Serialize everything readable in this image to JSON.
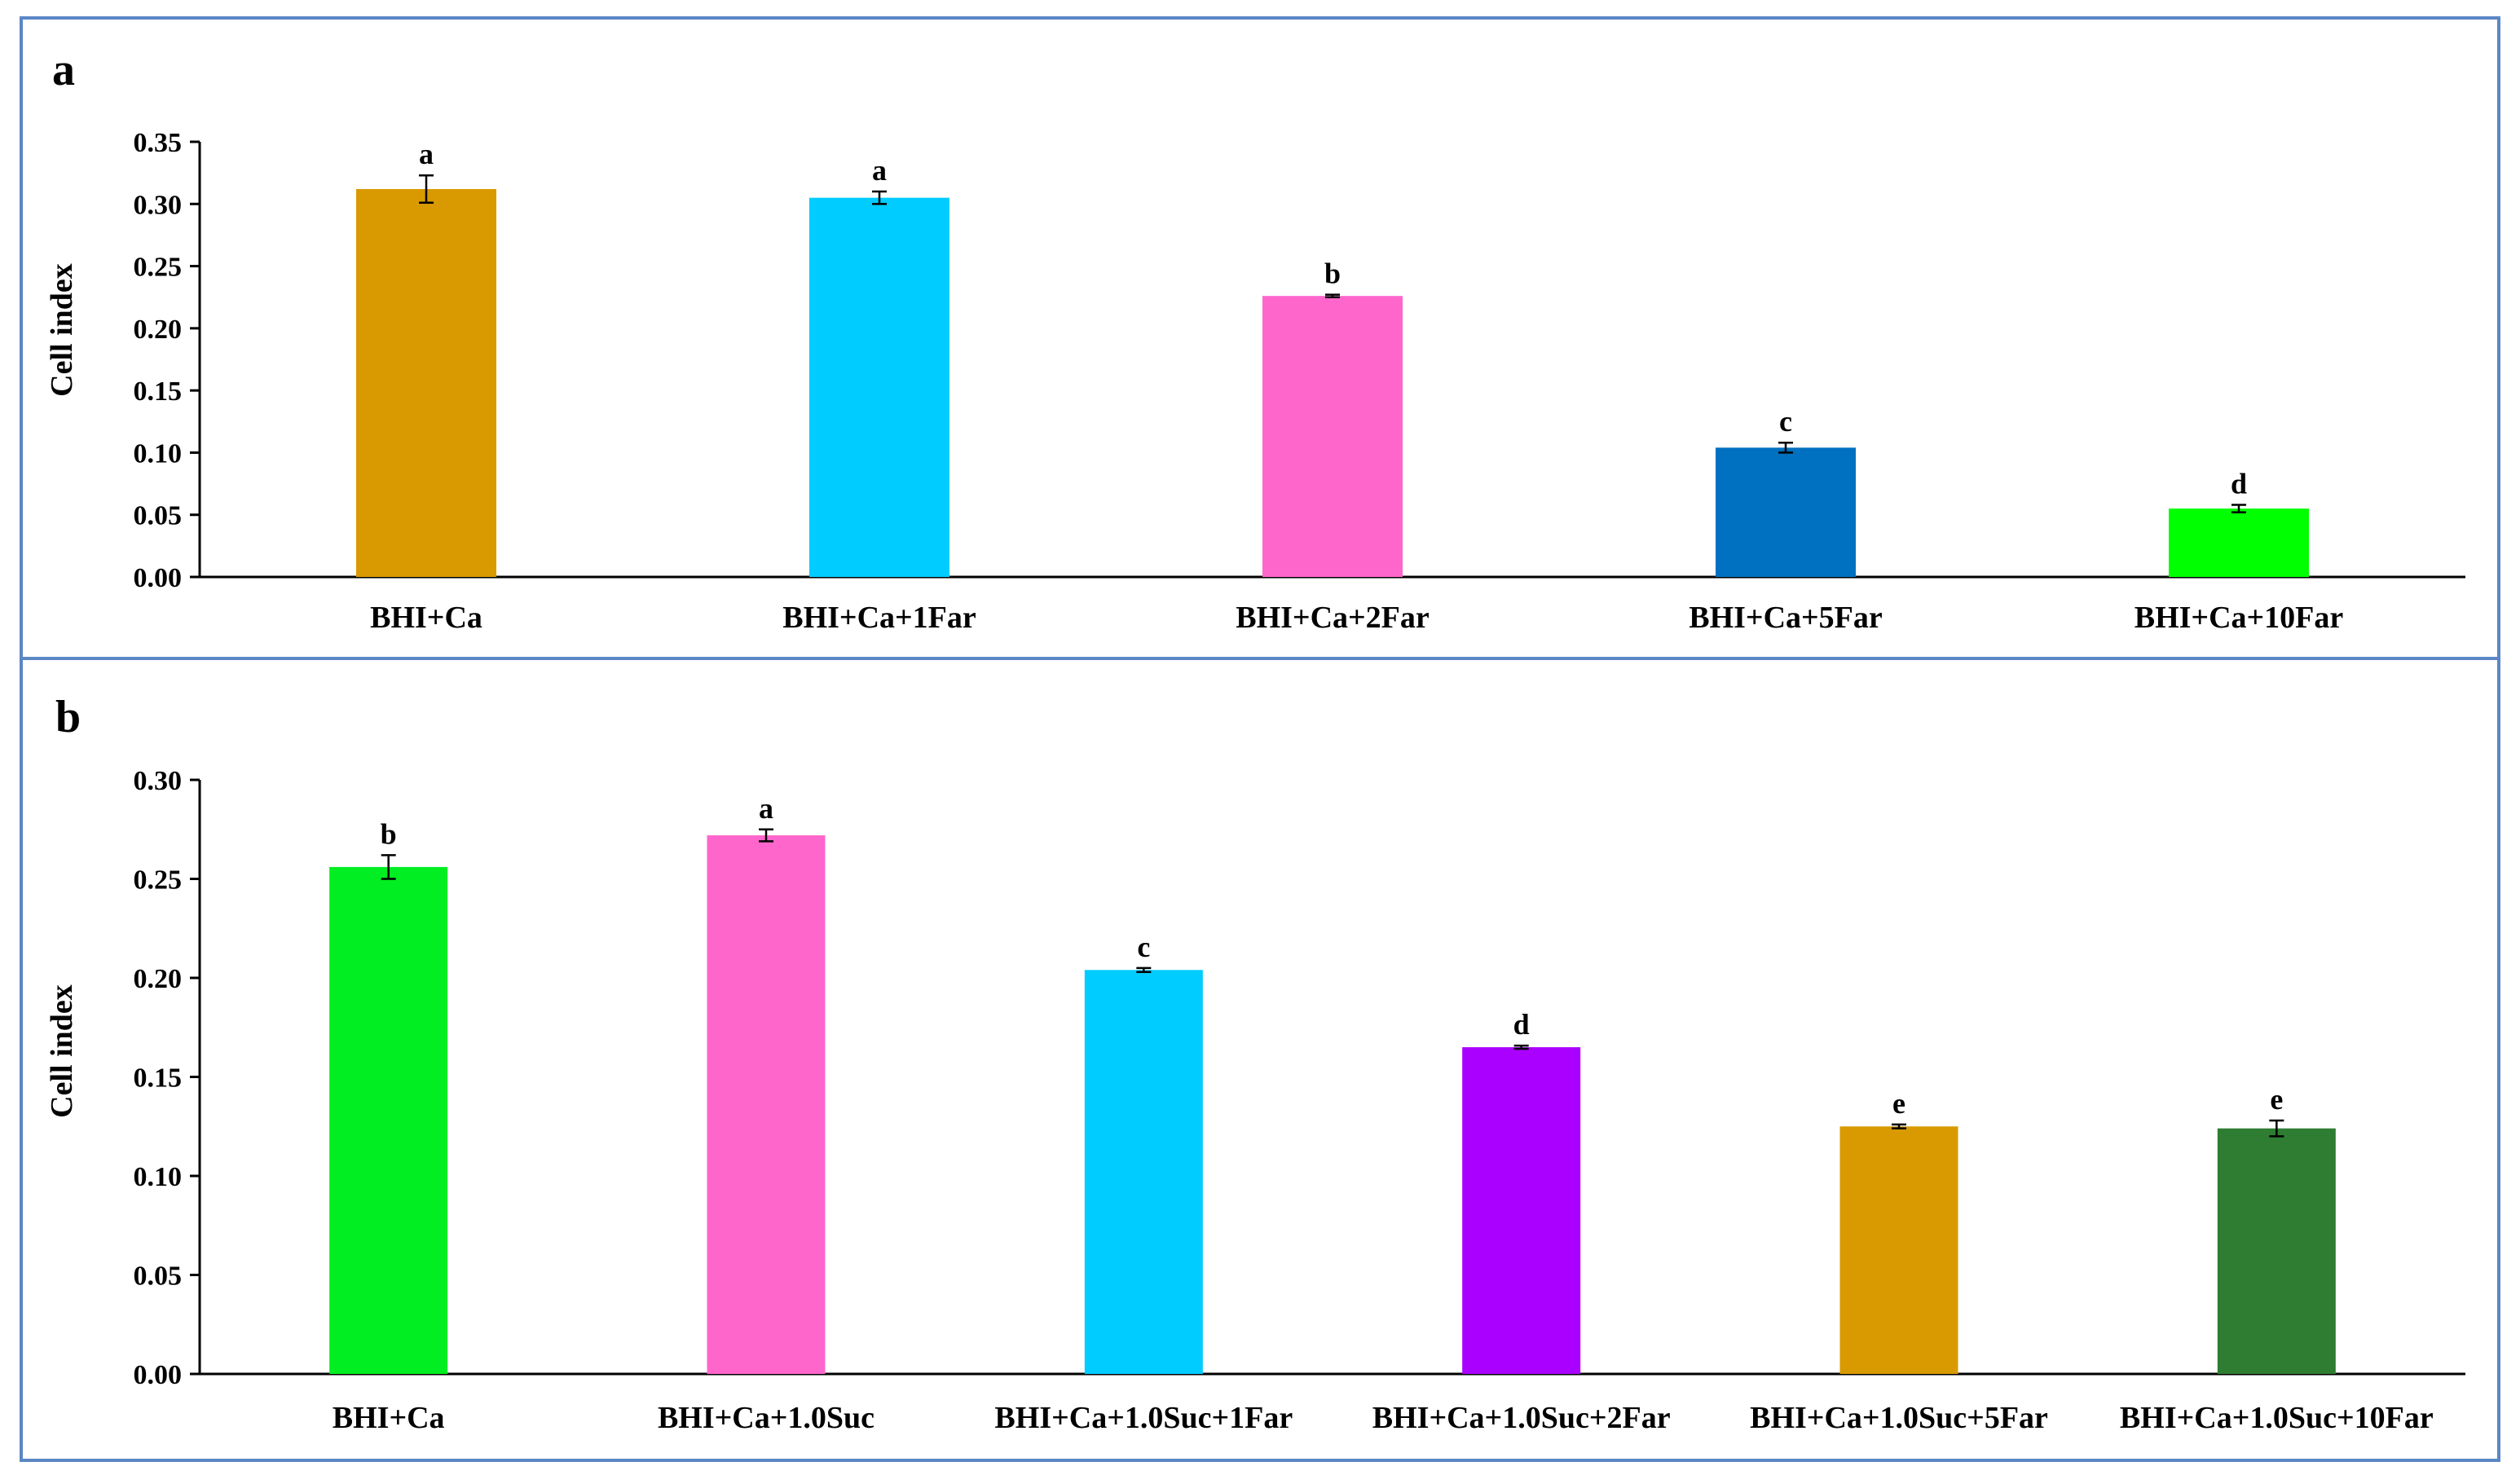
{
  "panels": [
    {
      "label": "a",
      "chart_data": {
        "type": "bar",
        "ylabel": "Cell index",
        "xlabel": "",
        "ylim": [
          0,
          0.35
        ],
        "yticks": [
          "0.00",
          "0.05",
          "0.10",
          "0.15",
          "0.20",
          "0.25",
          "0.30",
          "0.35"
        ],
        "grid": false,
        "categories": [
          "BHI+Ca",
          "BHI+Ca+1Far",
          "BHI+Ca+2Far",
          "BHI+Ca+5Far",
          "BHI+Ca+10Far"
        ],
        "values": [
          0.312,
          0.305,
          0.226,
          0.104,
          0.055
        ],
        "errors": [
          0.011,
          0.005,
          0.001,
          0.004,
          0.003
        ],
        "significance": [
          "a",
          "a",
          "b",
          "c",
          "d"
        ],
        "colors": [
          "#D89A00",
          "#00CCFF",
          "#FF66CC",
          "#0070C0",
          "#00FF00"
        ]
      }
    },
    {
      "label": "b",
      "chart_data": {
        "type": "bar",
        "ylabel": "Cell index",
        "xlabel": "",
        "ylim": [
          0,
          0.3
        ],
        "yticks": [
          "0.00",
          "0.05",
          "0.10",
          "0.15",
          "0.20",
          "0.25",
          "0.30"
        ],
        "grid": false,
        "categories": [
          "BHI+Ca",
          "BHI+Ca+1.0Suc",
          "BHI+Ca+1.0Suc+1Far",
          "BHI+Ca+1.0Suc+2Far",
          "BHI+Ca+1.0Suc+5Far",
          "BHI+Ca+1.0Suc+10Far"
        ],
        "values": [
          0.256,
          0.272,
          0.204,
          0.165,
          0.125,
          0.124
        ],
        "errors": [
          0.006,
          0.003,
          0.001,
          0.0008,
          0.001,
          0.004
        ],
        "significance": [
          "b",
          "a",
          "c",
          "d",
          "e",
          "e"
        ],
        "colors": [
          "#00EE22",
          "#FF66CC",
          "#00CCFF",
          "#AA00FF",
          "#D89A00",
          "#2E7D32"
        ]
      }
    }
  ]
}
